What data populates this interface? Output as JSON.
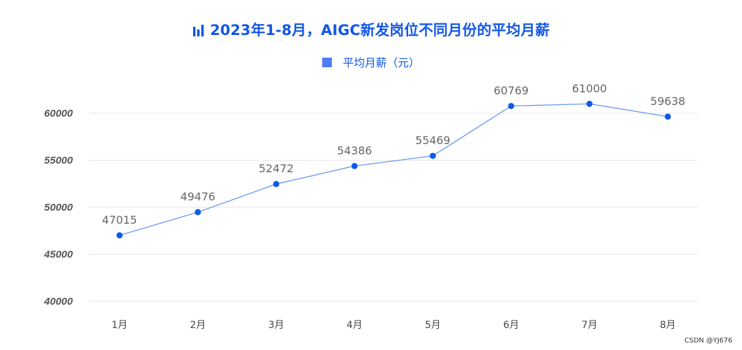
{
  "chart_data": {
    "type": "line",
    "title": "2023年1-8月，AIGC新发岗位不同月份的平均月薪",
    "categories": [
      "1月",
      "2月",
      "3月",
      "4月",
      "5月",
      "6月",
      "7月",
      "8月"
    ],
    "series": [
      {
        "name": "平均月薪（元）",
        "values": [
          47015,
          49476,
          52472,
          54386,
          55469,
          60769,
          61000,
          59638
        ],
        "color": "#0b5bea"
      }
    ],
    "yticks": [
      40000,
      45000,
      50000,
      55000,
      60000
    ],
    "ylim": [
      40000,
      62000
    ],
    "xlabel": "",
    "ylabel": "",
    "grid": true,
    "legend": "top-center",
    "title_color": "#1257e6",
    "line_color": "#5a8ef0"
  },
  "watermark": "CSDN @YJ676"
}
